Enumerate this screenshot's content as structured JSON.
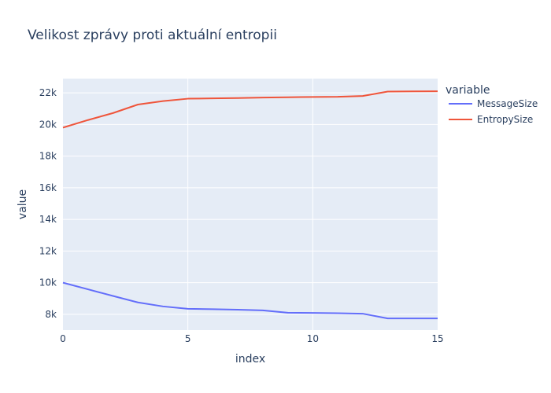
{
  "chart_data": {
    "type": "line",
    "title": "Velikost zprávy proti aktuální entropii",
    "xlabel": "index",
    "ylabel": "value",
    "xlim": [
      0,
      15
    ],
    "ylim": [
      7000,
      22900
    ],
    "x_ticks": [
      0,
      5,
      10,
      15
    ],
    "x_tick_labels": [
      "0",
      "5",
      "10",
      "15"
    ],
    "y_ticks": [
      8000,
      10000,
      12000,
      14000,
      16000,
      18000,
      20000,
      22000
    ],
    "y_tick_labels": [
      "8k",
      "10k",
      "12k",
      "14k",
      "16k",
      "18k",
      "20k",
      "22k"
    ],
    "grid": true,
    "legend_title": "variable",
    "legend_position": "right",
    "x": [
      0,
      1,
      2,
      3,
      4,
      5,
      6,
      7,
      8,
      9,
      10,
      11,
      12,
      13,
      14,
      15
    ],
    "series": [
      {
        "name": "MessageSize",
        "color": "#636efa",
        "values": [
          10000,
          9580,
          9160,
          8750,
          8500,
          8350,
          8320,
          8290,
          8250,
          8100,
          8090,
          8070,
          8040,
          7740,
          7740,
          7740
        ]
      },
      {
        "name": "EntropySize",
        "color": "#ef553b",
        "values": [
          19800,
          20280,
          20720,
          21260,
          21480,
          21630,
          21650,
          21670,
          21700,
          21720,
          21740,
          21750,
          21800,
          22080,
          22090,
          22100
        ]
      }
    ],
    "plot_bg": "#e5ecf6",
    "grid_color": "#ffffff"
  }
}
